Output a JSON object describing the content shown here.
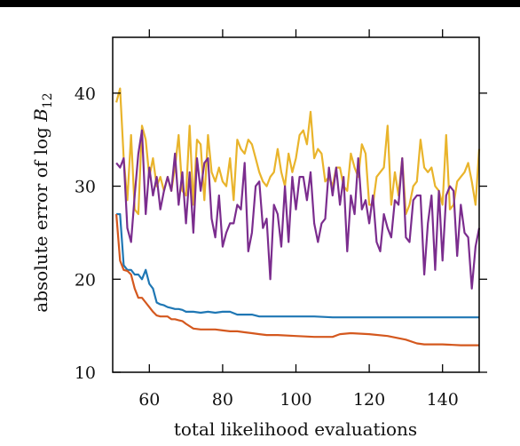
{
  "chart_data": {
    "type": "line",
    "title": "",
    "xlabel": "total likelihood evaluations",
    "ylabel_prefix": "absolute error of log ",
    "ylabel_var": "B",
    "ylabel_sub": "12",
    "xlim": [
      50,
      150
    ],
    "ylim": [
      10,
      46
    ],
    "xticks": [
      60,
      80,
      100,
      120,
      140
    ],
    "yticks": [
      10,
      20,
      30,
      40
    ],
    "grid": false,
    "series": [
      {
        "color": "#E9B42B",
        "x": [
          51,
          52,
          53,
          54,
          55,
          56,
          57,
          58,
          59,
          60,
          61,
          62,
          63,
          64,
          65,
          66,
          67,
          68,
          69,
          70,
          71,
          72,
          73,
          74,
          75,
          76,
          77,
          78,
          79,
          80,
          81,
          82,
          83,
          84,
          85,
          86,
          87,
          88,
          89,
          90,
          91,
          92,
          93,
          94,
          95,
          96,
          97,
          98,
          99,
          100,
          101,
          102,
          103,
          104,
          105,
          106,
          107,
          108,
          109,
          110,
          111,
          112,
          113,
          114,
          115,
          116,
          117,
          118,
          119,
          120,
          121,
          122,
          123,
          124,
          125,
          126,
          127,
          128,
          129,
          130,
          131,
          132,
          133,
          134,
          135,
          136,
          137,
          138,
          139,
          140,
          141,
          142,
          143,
          144,
          145,
          146,
          147,
          148,
          149,
          150
        ],
        "values": [
          39,
          40.5,
          33,
          28.5,
          35.5,
          27.5,
          27,
          36.5,
          35,
          31,
          33,
          30,
          31,
          29.5,
          31,
          29.5,
          32,
          35.5,
          29.5,
          29,
          36.5,
          28,
          35,
          34.5,
          28.5,
          35.5,
          31.5,
          30.5,
          32,
          30.5,
          30,
          33,
          28.5,
          35,
          34,
          33.5,
          35,
          34.5,
          33,
          31.5,
          30.5,
          30,
          31,
          31.5,
          34,
          31.5,
          30,
          33.5,
          31.5,
          33,
          35.5,
          36,
          34.5,
          38,
          33,
          34,
          33.5,
          30.5,
          31,
          30,
          32,
          32,
          30,
          29.5,
          33.5,
          32,
          31,
          34.5,
          33.5,
          28,
          28,
          31,
          31.5,
          32,
          36.5,
          28,
          31.5,
          29,
          33,
          27,
          28,
          30,
          30.5,
          35,
          32,
          31.5,
          32,
          30,
          29.5,
          28,
          35.5,
          27.5,
          28,
          30.5,
          31,
          31.5,
          32.5,
          30.5,
          28,
          34
        ]
      },
      {
        "color": "#7B2D8E",
        "x": [
          51,
          52,
          53,
          54,
          55,
          56,
          57,
          58,
          59,
          60,
          61,
          62,
          63,
          64,
          65,
          66,
          67,
          68,
          69,
          70,
          71,
          72,
          73,
          74,
          75,
          76,
          77,
          78,
          79,
          80,
          81,
          82,
          83,
          84,
          85,
          86,
          87,
          88,
          89,
          90,
          91,
          92,
          93,
          94,
          95,
          96,
          97,
          98,
          99,
          100,
          101,
          102,
          103,
          104,
          105,
          106,
          107,
          108,
          109,
          110,
          111,
          112,
          113,
          114,
          115,
          116,
          117,
          118,
          119,
          120,
          121,
          122,
          123,
          124,
          125,
          126,
          127,
          128,
          129,
          130,
          131,
          132,
          133,
          134,
          135,
          136,
          137,
          138,
          139,
          140,
          141,
          142,
          143,
          144,
          145,
          146,
          147,
          148,
          149,
          150
        ],
        "values": [
          32.5,
          32,
          33,
          25.5,
          24,
          29,
          33.5,
          36,
          27,
          32,
          29,
          31,
          27.5,
          29.5,
          31,
          29.5,
          33.5,
          28,
          31.5,
          26,
          31.5,
          25,
          33,
          29.5,
          32.5,
          33,
          26.5,
          24.5,
          29,
          23.5,
          25,
          26,
          26,
          28,
          27.5,
          32.5,
          23,
          25,
          30,
          30.5,
          25.5,
          26.5,
          20,
          28,
          27,
          23.5,
          30,
          24,
          31,
          27.5,
          31,
          31,
          28.5,
          31.5,
          26,
          24,
          26,
          26.5,
          32,
          29,
          32,
          28,
          31,
          23,
          29,
          27,
          33,
          27.5,
          28.5,
          26,
          29,
          24,
          23,
          27,
          25.5,
          24.5,
          28.5,
          28,
          33,
          24.5,
          24,
          28.5,
          29,
          29,
          20.5,
          26,
          29,
          21,
          29.5,
          22,
          29,
          30,
          29.5,
          22.5,
          28,
          25,
          24.5,
          19,
          23.5,
          25.5
        ]
      },
      {
        "color": "#1F77B4",
        "x": [
          51,
          52,
          53,
          54,
          55,
          56,
          57,
          58,
          59,
          60,
          61,
          62,
          63,
          64,
          65,
          66,
          67,
          68,
          69,
          70,
          72,
          74,
          76,
          78,
          80,
          82,
          84,
          86,
          88,
          90,
          92,
          95,
          100,
          105,
          110,
          115,
          120,
          125,
          130,
          135,
          140,
          145,
          150
        ],
        "values": [
          27,
          27,
          21.5,
          21,
          21,
          20.5,
          20.5,
          20,
          21,
          19.5,
          19,
          17.5,
          17.3,
          17.2,
          17,
          16.9,
          16.8,
          16.8,
          16.7,
          16.5,
          16.5,
          16.4,
          16.5,
          16.4,
          16.5,
          16.5,
          16.2,
          16.2,
          16.2,
          16,
          16,
          16,
          16,
          16,
          15.9,
          15.9,
          15.9,
          15.9,
          15.9,
          15.9,
          15.9,
          15.9,
          15.9
        ]
      },
      {
        "color": "#D4581E",
        "x": [
          51,
          52,
          53,
          54,
          55,
          56,
          57,
          58,
          59,
          60,
          61,
          62,
          63,
          64,
          65,
          66,
          67,
          68,
          69,
          70,
          72,
          74,
          76,
          78,
          80,
          82,
          84,
          86,
          88,
          90,
          92,
          95,
          100,
          105,
          110,
          112,
          115,
          120,
          125,
          130,
          133,
          135,
          138,
          140,
          145,
          150
        ],
        "values": [
          27,
          22,
          21,
          20.9,
          20.5,
          19,
          18,
          18,
          17.5,
          17,
          16.5,
          16.1,
          16,
          16,
          16,
          15.7,
          15.7,
          15.6,
          15.5,
          15.2,
          14.7,
          14.6,
          14.6,
          14.6,
          14.5,
          14.4,
          14.4,
          14.3,
          14.2,
          14.1,
          14,
          14,
          13.9,
          13.8,
          13.8,
          14.1,
          14.2,
          14.1,
          13.9,
          13.5,
          13.1,
          13,
          13,
          13,
          12.9,
          12.9
        ]
      }
    ]
  }
}
